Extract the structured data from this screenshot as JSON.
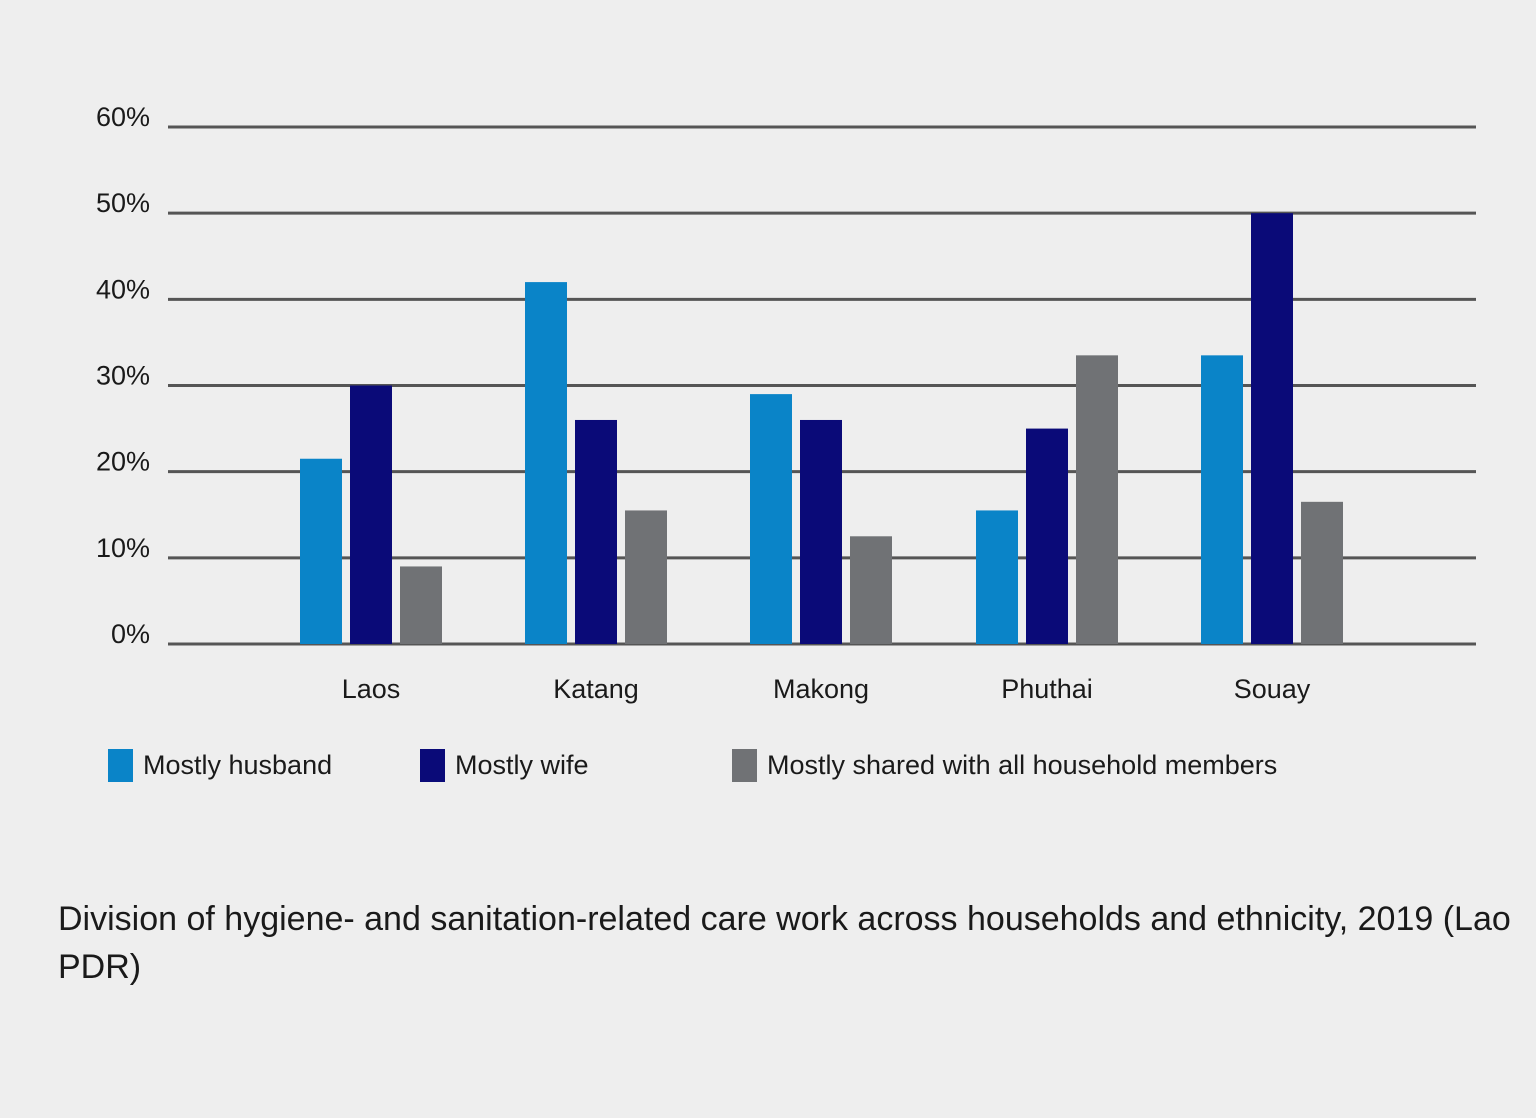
{
  "chart_data": {
    "type": "bar",
    "categories": [
      "Laos",
      "Katang",
      "Makong",
      "Phuthai",
      "Souay"
    ],
    "series": [
      {
        "name": "Mostly husband",
        "color": "#0a84c8",
        "values": [
          21.5,
          42,
          29,
          15.5,
          33.5
        ]
      },
      {
        "name": "Mostly wife",
        "color": "#0a0a78",
        "values": [
          30,
          26,
          26,
          25,
          50
        ]
      },
      {
        "name": "Mostly shared with all household members",
        "color": "#707275",
        "values": [
          9,
          15.5,
          12.5,
          33.5,
          16.5
        ]
      }
    ],
    "y_ticks": [
      "0%",
      "10%",
      "20%",
      "30%",
      "40%",
      "50%",
      "60%"
    ],
    "ylim": [
      0,
      60
    ],
    "grid": true,
    "legend_placement": "bottom",
    "title": "",
    "xlabel": "",
    "ylabel": ""
  },
  "caption": "Division of hygiene- and sanitation-related care work across households and ethnicity, 2019 (Lao PDR)"
}
